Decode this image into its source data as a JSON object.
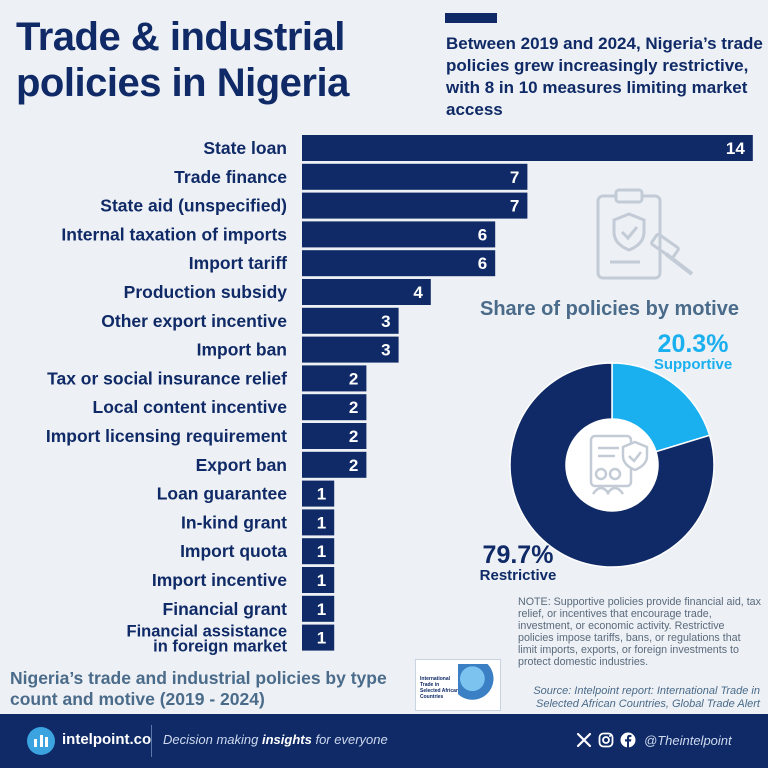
{
  "header": {
    "title": "Trade & industrial policies in Nigeria",
    "subtitle": "Between 2019 and 2024, Nigeria’s trade policies grew increasingly restrictive, with 8 in 10 measures limiting market access"
  },
  "chart_data": [
    {
      "type": "bar",
      "orientation": "horizontal",
      "title": "",
      "categories": [
        "State loan",
        "Trade finance",
        "State aid (unspecified)",
        "Internal taxation of imports",
        "Import tariff",
        "Production subsidy",
        "Other export incentive",
        "Import ban",
        "Tax or social insurance relief",
        "Local content incentive",
        "Import licensing requirement",
        "Export ban",
        "Loan guarantee",
        "In-kind grant",
        "Import quota",
        "Import incentive",
        "Financial grant",
        "Financial assistance in foreign market"
      ],
      "values": [
        14,
        7,
        7,
        6,
        6,
        4,
        3,
        3,
        2,
        2,
        2,
        2,
        1,
        1,
        1,
        1,
        1,
        1
      ],
      "bar_color": "#0f2a66",
      "data_labels": true
    },
    {
      "type": "pie",
      "subtype": "donut",
      "title": "Share of policies by motive",
      "slices": [
        {
          "label": "Supportive",
          "value": 20.3,
          "display": "20.3%",
          "color": "#1ab0ef"
        },
        {
          "label": "Restrictive",
          "value": 79.7,
          "display": "79.7%",
          "color": "#0f2a66"
        }
      ]
    }
  ],
  "note": "NOTE: Supportive policies provide financial aid, tax relief, or incentives that encourage trade, investment, or economic activity. Restrictive policies impose tariffs, bans, or regulations that limit imports, exports, or foreign investments to protect domestic industries.",
  "caption": "Nigeria’s trade and industrial policies by type count and motive (2019 - 2024)",
  "report_thumbnail": {
    "title": "International Trade in Selected African Countries"
  },
  "source": "Source: Intelpoint report: International Trade in Selected African Countries, Global Trade Alert",
  "footer": {
    "brand": "intelpoint.co",
    "tagline_pre": "Decision making ",
    "tagline_bold": "insights",
    "tagline_post": " for everyone",
    "handle": "@Theintelpoint",
    "icons": [
      "x-icon",
      "instagram-icon",
      "facebook-icon"
    ]
  }
}
